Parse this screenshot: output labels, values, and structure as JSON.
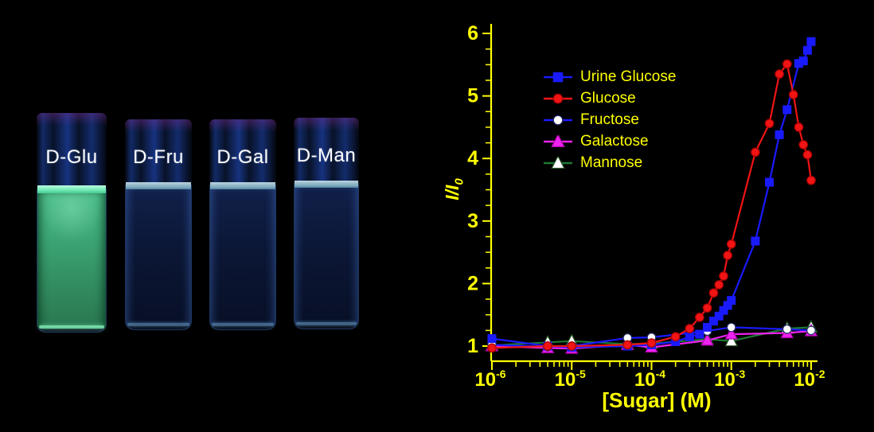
{
  "photo": {
    "label_color": "#ffffff",
    "vials": [
      {
        "label": "D-Glu",
        "appearance": "bright green fluorescence"
      },
      {
        "label": "D-Fru",
        "appearance": "dark blue, no fluorescence"
      },
      {
        "label": "D-Gal",
        "appearance": "dark blue, no fluorescence"
      },
      {
        "label": "D-Man",
        "appearance": "dark blue, no fluorescence"
      }
    ]
  },
  "chart_data": {
    "type": "line",
    "title": "",
    "xlabel": "[Sugar] (M)",
    "ylabel": "I/I0",
    "ylabel_main": "I/I",
    "ylabel_sub": "0",
    "x_scale": "log",
    "xlim": [
      1e-06,
      0.01
    ],
    "ylim": [
      1,
      6
    ],
    "grid": false,
    "legend_position": "upper left inside",
    "axis_color": "#ffff00",
    "text_color": "#ffff00",
    "y_ticks": [
      1,
      2,
      3,
      4,
      5,
      6
    ],
    "x_ticks": [
      {
        "base": "10",
        "exp": "-6",
        "value": 1e-06
      },
      {
        "base": "10",
        "exp": "-5",
        "value": 1e-05
      },
      {
        "base": "10",
        "exp": "-4",
        "value": 0.0001
      },
      {
        "base": "10",
        "exp": "-3",
        "value": 0.001
      },
      {
        "base": "10",
        "exp": "-2",
        "value": 0.01
      }
    ],
    "series": [
      {
        "name": "Urine Glucose",
        "color": "#1a1aff",
        "marker": "square",
        "marker_fill": "#1a1aff",
        "marker_stroke": "#1a1aff",
        "points": [
          [
            1e-06,
            1.12
          ],
          [
            5e-06,
            1.0
          ],
          [
            1e-05,
            0.98
          ],
          [
            5e-05,
            1.0
          ],
          [
            0.0001,
            1.02
          ],
          [
            0.0002,
            1.07
          ],
          [
            0.0003,
            1.15
          ],
          [
            0.0004,
            1.19
          ],
          [
            0.0005,
            1.3
          ],
          [
            0.0006,
            1.4
          ],
          [
            0.0007,
            1.48
          ],
          [
            0.0008,
            1.57
          ],
          [
            0.0009,
            1.65
          ],
          [
            0.001,
            1.73
          ],
          [
            0.002,
            2.68
          ],
          [
            0.003,
            3.62
          ],
          [
            0.004,
            4.38
          ],
          [
            0.005,
            4.78
          ],
          [
            0.007,
            5.52
          ],
          [
            0.008,
            5.56
          ],
          [
            0.009,
            5.73
          ],
          [
            0.01,
            5.87
          ]
        ]
      },
      {
        "name": "Glucose",
        "color": "#f01414",
        "marker": "circle",
        "marker_fill": "#f01414",
        "marker_stroke": "#a80000",
        "points": [
          [
            1e-06,
            0.97
          ],
          [
            5e-06,
            1.0
          ],
          [
            1e-05,
            1.0
          ],
          [
            5e-05,
            1.02
          ],
          [
            0.0001,
            1.05
          ],
          [
            0.0002,
            1.15
          ],
          [
            0.0003,
            1.28
          ],
          [
            0.0004,
            1.46
          ],
          [
            0.0005,
            1.61
          ],
          [
            0.0006,
            1.85
          ],
          [
            0.0007,
            1.98
          ],
          [
            0.0008,
            2.12
          ],
          [
            0.0009,
            2.45
          ],
          [
            0.001,
            2.63
          ],
          [
            0.002,
            4.1
          ],
          [
            0.003,
            4.56
          ],
          [
            0.004,
            5.35
          ],
          [
            0.005,
            5.51
          ],
          [
            0.006,
            5.02
          ],
          [
            0.007,
            4.5
          ],
          [
            0.008,
            4.22
          ],
          [
            0.009,
            4.06
          ],
          [
            0.01,
            3.65
          ]
        ]
      },
      {
        "name": "Fructose",
        "color": "#1a1aff",
        "marker": "circle",
        "marker_fill": "#ffffff",
        "marker_stroke": "#222a66",
        "points": [
          [
            1e-06,
            1.02
          ],
          [
            5e-06,
            0.99
          ],
          [
            1e-05,
            1.0
          ],
          [
            5e-05,
            1.13
          ],
          [
            0.0001,
            1.14
          ],
          [
            0.0005,
            1.24
          ],
          [
            0.001,
            1.3
          ],
          [
            0.005,
            1.27
          ],
          [
            0.01,
            1.25
          ]
        ]
      },
      {
        "name": "Galactose",
        "color": "#ee22ee",
        "marker": "triangle",
        "marker_fill": "#ee22ee",
        "marker_stroke": "#aa00aa",
        "points": [
          [
            1e-06,
            1.0
          ],
          [
            5e-06,
            0.97
          ],
          [
            1e-05,
            0.96
          ],
          [
            5e-05,
            1.02
          ],
          [
            0.0001,
            0.98
          ],
          [
            0.0005,
            1.09
          ],
          [
            0.001,
            1.19
          ],
          [
            0.005,
            1.21
          ],
          [
            0.01,
            1.24
          ]
        ]
      },
      {
        "name": "Mannose",
        "color": "#1d7a33",
        "marker": "triangle",
        "marker_fill": "#ffffff",
        "marker_stroke": "#2a5a2a",
        "points": [
          [
            1e-06,
            1.01
          ],
          [
            5e-06,
            1.06
          ],
          [
            1e-05,
            1.08
          ],
          [
            5e-05,
            1.03
          ],
          [
            0.0001,
            1.04
          ],
          [
            0.0005,
            1.11
          ],
          [
            0.001,
            1.08
          ],
          [
            0.005,
            1.28
          ],
          [
            0.01,
            1.3
          ]
        ]
      }
    ]
  }
}
